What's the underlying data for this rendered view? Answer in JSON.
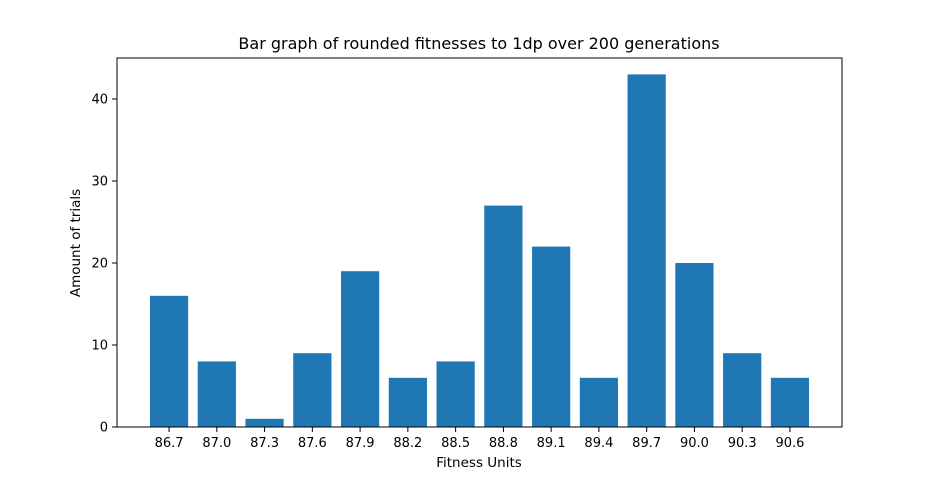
{
  "chart_data": {
    "type": "bar",
    "title": "Bar graph of rounded fitnesses to 1dp over 200 generations",
    "xlabel": "Fitness Units",
    "ylabel": "Amount of trials",
    "categories": [
      "86.7",
      "87.0",
      "87.3",
      "87.6",
      "87.9",
      "88.2",
      "88.5",
      "88.8",
      "89.1",
      "89.4",
      "89.7",
      "90.0",
      "90.3",
      "90.6"
    ],
    "values": [
      16,
      8,
      1,
      9,
      19,
      6,
      8,
      27,
      22,
      6,
      43,
      20,
      9,
      6
    ],
    "ylim": [
      0,
      45
    ],
    "yticks": [
      0,
      10,
      20,
      30,
      40
    ],
    "grid": false,
    "colors": {
      "bar": "#1f77b4",
      "axis": "#000000",
      "background": "#ffffff"
    }
  }
}
